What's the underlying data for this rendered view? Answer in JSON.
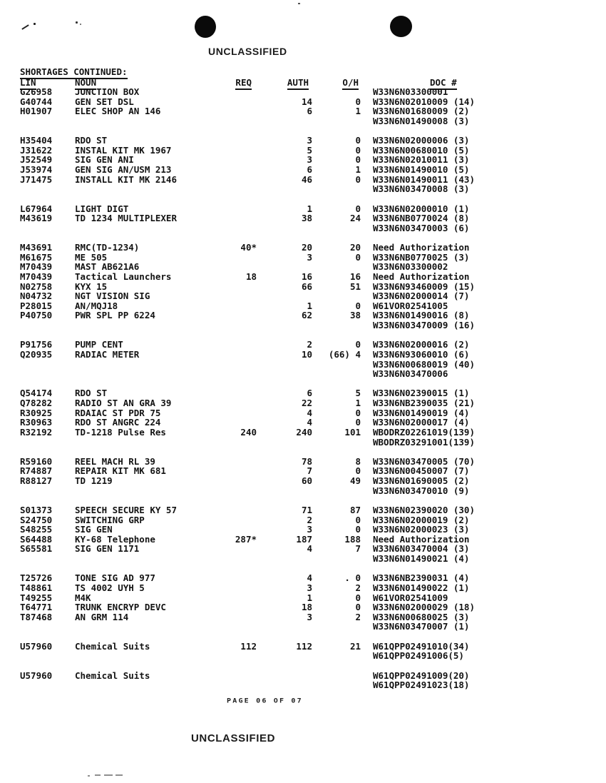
{
  "page": {
    "classification_top": "UNCLASSIFIED",
    "classification_bottom": "UNCLASSIFIED",
    "section_title": "SHORTAGES CONTINUED:",
    "page_footer": "PAGE 06 OF 07",
    "ink_color": "#131313",
    "paper_color": "#ffffff"
  },
  "table": {
    "headers": {
      "lin": "LIN",
      "noun": "NOUN",
      "req": "REQ",
      "auth": "AUTH",
      "oh": "O/H",
      "doc": "DOC #"
    },
    "rows": [
      {
        "lin": "G26958",
        "noun": "JUNCTION BOX",
        "req": "",
        "auth": "",
        "oh": "",
        "doc": "W33N6N03300001"
      },
      {
        "lin": "G40744",
        "noun": "GEN SET DSL",
        "req": "",
        "auth": "14",
        "oh": "0",
        "doc": "W33N6N02010009 (14)"
      },
      {
        "lin": "H01907",
        "noun": "ELEC SHOP AN 146",
        "req": "",
        "auth": "6",
        "oh": "1",
        "doc": "W33N6N01680009 (2)"
      },
      {
        "lin": "",
        "noun": "",
        "req": "",
        "auth": "",
        "oh": "",
        "doc": "W33N6N01490008 (3)"
      },
      {
        "lin": "",
        "noun": "",
        "req": "",
        "auth": "",
        "oh": "",
        "doc": ""
      },
      {
        "lin": "H35404",
        "noun": "RDO ST",
        "req": "",
        "auth": "3",
        "oh": "0",
        "doc": "W33N6N02000006 (3)"
      },
      {
        "lin": "J31622",
        "noun": "INSTAL KIT MK 1967",
        "req": "",
        "auth": "5",
        "oh": "0",
        "doc": "W33N6N00680010 (5)"
      },
      {
        "lin": "J52549",
        "noun": "SIG GEN ANI",
        "req": "",
        "auth": "3",
        "oh": "0",
        "doc": "W33N6N02010011 (3)"
      },
      {
        "lin": "J53974",
        "noun": "GEN SIG AN/USM 213",
        "req": "",
        "auth": "6",
        "oh": "1",
        "doc": "W33N6N01490010 (5)"
      },
      {
        "lin": "J71475",
        "noun": "INSTALL KIT MK 2146",
        "req": "",
        "auth": "46",
        "oh": "0",
        "doc": "W33N6N01490011 (43)"
      },
      {
        "lin": "",
        "noun": "",
        "req": "",
        "auth": "",
        "oh": "",
        "doc": "W33N6N03470008 (3)"
      },
      {
        "lin": "",
        "noun": "",
        "req": "",
        "auth": "",
        "oh": "",
        "doc": ""
      },
      {
        "lin": "L67964",
        "noun": "LIGHT DIGT",
        "req": "",
        "auth": "1",
        "oh": "0",
        "doc": "W33N6N02000010 (1)"
      },
      {
        "lin": "M43619",
        "noun": "TD 1234 MULTIPLEXER",
        "req": "",
        "auth": "38",
        "oh": "24",
        "doc": "W33N6NB0770024 (8)"
      },
      {
        "lin": "",
        "noun": "",
        "req": "",
        "auth": "",
        "oh": "",
        "doc": "W33N6N03470003 (6)"
      },
      {
        "lin": "",
        "noun": "",
        "req": "",
        "auth": "",
        "oh": "",
        "doc": ""
      },
      {
        "lin": "M43691",
        "noun": "RMC(TD-1234)",
        "req": "40*",
        "auth": "20",
        "oh": "20",
        "doc": "Need Authorization"
      },
      {
        "lin": "M61675",
        "noun": "ME 505",
        "req": "",
        "auth": "3",
        "oh": "0",
        "doc": "W33N6NB0770025 (3)"
      },
      {
        "lin": "M70439",
        "noun": "MAST AB621A6",
        "req": "",
        "auth": "",
        "oh": "",
        "doc": "W33N6N03300002"
      },
      {
        "lin": "M70439",
        "noun": "Tactical Launchers",
        "req": "18",
        "auth": "16",
        "oh": "16",
        "doc": "Need Authorization"
      },
      {
        "lin": "N02758",
        "noun": "KYX 15",
        "req": "",
        "auth": "66",
        "oh": "51",
        "doc": "W33N6N93460009 (15)"
      },
      {
        "lin": "N04732",
        "noun": "NGT VISION SIG",
        "req": "",
        "auth": "",
        "oh": "",
        "doc": "W33N6N02000014 (7)"
      },
      {
        "lin": "P28015",
        "noun": "AN/MQJ18",
        "req": "",
        "auth": "1",
        "oh": "0",
        "doc": "W61VOR02541005"
      },
      {
        "lin": "P40750",
        "noun": "PWR SPL PP 6224",
        "req": "",
        "auth": "62",
        "oh": "38",
        "doc": "W33N6N01490016 (8)"
      },
      {
        "lin": "",
        "noun": "",
        "req": "",
        "auth": "",
        "oh": "",
        "doc": "W33N6N03470009 (16)"
      },
      {
        "lin": "",
        "noun": "",
        "req": "",
        "auth": "",
        "oh": "",
        "doc": ""
      },
      {
        "lin": "P91756",
        "noun": "PUMP CENT",
        "req": "",
        "auth": "2",
        "oh": "0",
        "doc": "W33N6N02000016 (2)"
      },
      {
        "lin": "Q20935",
        "noun": "RADIAC METER",
        "req": "",
        "auth": "10",
        "oh": "(66) 4",
        "doc": "W33N6N93060010 (6)"
      },
      {
        "lin": "",
        "noun": "",
        "req": "",
        "auth": "",
        "oh": "",
        "doc": "W33N6N00680019 (40)"
      },
      {
        "lin": "",
        "noun": "",
        "req": "",
        "auth": "",
        "oh": "",
        "doc": "W33N6N03470006"
      },
      {
        "lin": "",
        "noun": "",
        "req": "",
        "auth": "",
        "oh": "",
        "doc": ""
      },
      {
        "lin": "Q54174",
        "noun": "RDO ST",
        "req": "",
        "auth": "6",
        "oh": "5",
        "doc": "W33N6N02390015 (1)"
      },
      {
        "lin": "Q78282",
        "noun": "RADIO ST AN GRA 39",
        "req": "",
        "auth": "22",
        "oh": "1",
        "doc": "W33N6NB2390035 (21)"
      },
      {
        "lin": "R30925",
        "noun": "RDAIAC ST PDR 75",
        "req": "",
        "auth": "4",
        "oh": "0",
        "doc": "W33N6N01490019 (4)"
      },
      {
        "lin": "R30963",
        "noun": "RDO ST ANGRC 224",
        "req": "",
        "auth": "4",
        "oh": "0",
        "doc": "W33N6N02000017 (4)"
      },
      {
        "lin": "R32192",
        "noun": "TD-1218 Pulse Res",
        "req": "240",
        "auth": "240",
        "oh": "101",
        "doc": "WBODRZ02261019(139)"
      },
      {
        "lin": "",
        "noun": "",
        "req": "",
        "auth": "",
        "oh": "",
        "doc": "WBODRZ03291001(139)"
      },
      {
        "lin": "",
        "noun": "",
        "req": "",
        "auth": "",
        "oh": "",
        "doc": ""
      },
      {
        "lin": "R59160",
        "noun": "REEL MACH RL 39",
        "req": "",
        "auth": "78",
        "oh": "8",
        "doc": "W33N6N03470005 (70)"
      },
      {
        "lin": "R74887",
        "noun": "REPAIR KIT MK 681",
        "req": "",
        "auth": "7",
        "oh": "0",
        "doc": "W33N6N00450007 (7)"
      },
      {
        "lin": "R88127",
        "noun": "TD 1219",
        "req": "",
        "auth": "60",
        "oh": "49",
        "doc": "W33N6N01690005 (2)"
      },
      {
        "lin": "",
        "noun": "",
        "req": "",
        "auth": "",
        "oh": "",
        "doc": "W33N6N03470010 (9)"
      },
      {
        "lin": "",
        "noun": "",
        "req": "",
        "auth": "",
        "oh": "",
        "doc": ""
      },
      {
        "lin": "S01373",
        "noun": "SPEECH SECURE KY 57",
        "req": "",
        "auth": "71",
        "oh": "87",
        "doc": "W33N6N02390020 (30)"
      },
      {
        "lin": "S24750",
        "noun": "SWITCHING GRP",
        "req": "",
        "auth": "2",
        "oh": "0",
        "doc": "W33N6N02000019 (2)"
      },
      {
        "lin": "S48255",
        "noun": "SIG GEN",
        "req": "",
        "auth": "3",
        "oh": "0",
        "doc": "W33N6N02000023 (3)"
      },
      {
        "lin": "S64488",
        "noun": "KY-68 Telephone",
        "req": "287*",
        "auth": "187",
        "oh": "188",
        "doc": "Need Authorization"
      },
      {
        "lin": "S65581",
        "noun": "SIG GEN 1171",
        "req": "",
        "auth": "4",
        "oh": "7",
        "doc": "W33N6N03470004 (3)"
      },
      {
        "lin": "",
        "noun": "",
        "req": "",
        "auth": "",
        "oh": "",
        "doc": "W33N6N01490021 (4)"
      },
      {
        "lin": "",
        "noun": "",
        "req": "",
        "auth": "",
        "oh": "",
        "doc": ""
      },
      {
        "lin": "T25726",
        "noun": "TONE SIG AD 977",
        "req": "",
        "auth": "4",
        "oh": ". 0",
        "doc": "W33N6NB2390031 (4)"
      },
      {
        "lin": "T48861",
        "noun": "TS 4002 UYH 5",
        "req": "",
        "auth": "3",
        "oh": "2",
        "doc": "W33N6N01490022 (1)"
      },
      {
        "lin": "T49255",
        "noun": "M4K",
        "req": "",
        "auth": "1",
        "oh": "0",
        "doc": "W61VOR02541009"
      },
      {
        "lin": "T64771",
        "noun": "TRUNK ENCRYP DEVC",
        "req": "",
        "auth": "18",
        "oh": "0",
        "doc": "W33N6N02000029 (18)"
      },
      {
        "lin": "T87468",
        "noun": "AN GRM 114",
        "req": "",
        "auth": "3",
        "oh": "2",
        "doc": "W33N6N00680025 (3)"
      },
      {
        "lin": "",
        "noun": "",
        "req": "",
        "auth": "",
        "oh": "",
        "doc": "W33N6N03470007 (1)"
      },
      {
        "lin": "",
        "noun": "",
        "req": "",
        "auth": "",
        "oh": "",
        "doc": ""
      },
      {
        "lin": "U57960",
        "noun": "Chemical Suits",
        "req": "112",
        "auth": "112",
        "oh": "21",
        "doc": "W61QPP02491010(34)"
      },
      {
        "lin": "",
        "noun": "",
        "req": "",
        "auth": "",
        "oh": "",
        "doc": "W61QPP02491006(5)"
      },
      {
        "lin": "",
        "noun": "",
        "req": "",
        "auth": "",
        "oh": "",
        "doc": ""
      },
      {
        "lin": "U57960",
        "noun": "Chemical Suits",
        "req": "",
        "auth": "",
        "oh": "",
        "doc": "W61QPP02491009(20)"
      },
      {
        "lin": "",
        "noun": "",
        "req": "",
        "auth": "",
        "oh": "",
        "doc": "W61QPP02491023(18)"
      }
    ]
  }
}
